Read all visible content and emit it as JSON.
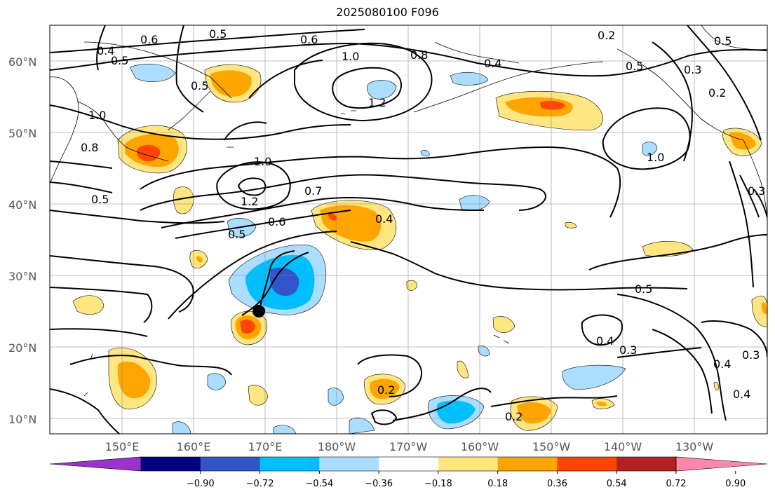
{
  "title": "2025080100 F096",
  "lat_labels": [
    "60°N",
    "50°N",
    "40°N",
    "30°N",
    "20°N",
    "10°N"
  ],
  "lon_labels": [
    "150°E",
    "160°E",
    "170°E",
    "180°W",
    "170°W",
    "160°W",
    "150°W",
    "140°W",
    "130°W"
  ],
  "contour_labels": [
    "0.4",
    "0.5",
    "0.6",
    "0.5",
    "0.6",
    "1.0",
    "0.8",
    "0.4",
    "0.2",
    "0.5",
    "0.5",
    "0.3",
    "0.2",
    "1.0",
    "0.8",
    "0.5",
    "1.2",
    "1.0",
    "1.2",
    "0.7",
    "0.6",
    "0.5",
    "0.4",
    "1.0",
    "0.3",
    "0.5",
    "0.5",
    "0.3",
    "0.4",
    "0.3",
    "0.4",
    "0.2",
    "0.2",
    "0.4"
  ],
  "colorbar": {
    "colors": [
      "#9933cc",
      "#000080",
      "#3355cc",
      "#00bfff",
      "#aaddff",
      "#ffffff",
      "#ffe680",
      "#ffa500",
      "#ff4500",
      "#b22222",
      "#ff88aa"
    ],
    "ticks": [
      "−0.90",
      "−0.72",
      "−0.54",
      "−0.36",
      "−0.18",
      "0.18",
      "0.36",
      "0.54",
      "0.72",
      "0.90"
    ]
  },
  "marker": "typhoon-position"
}
